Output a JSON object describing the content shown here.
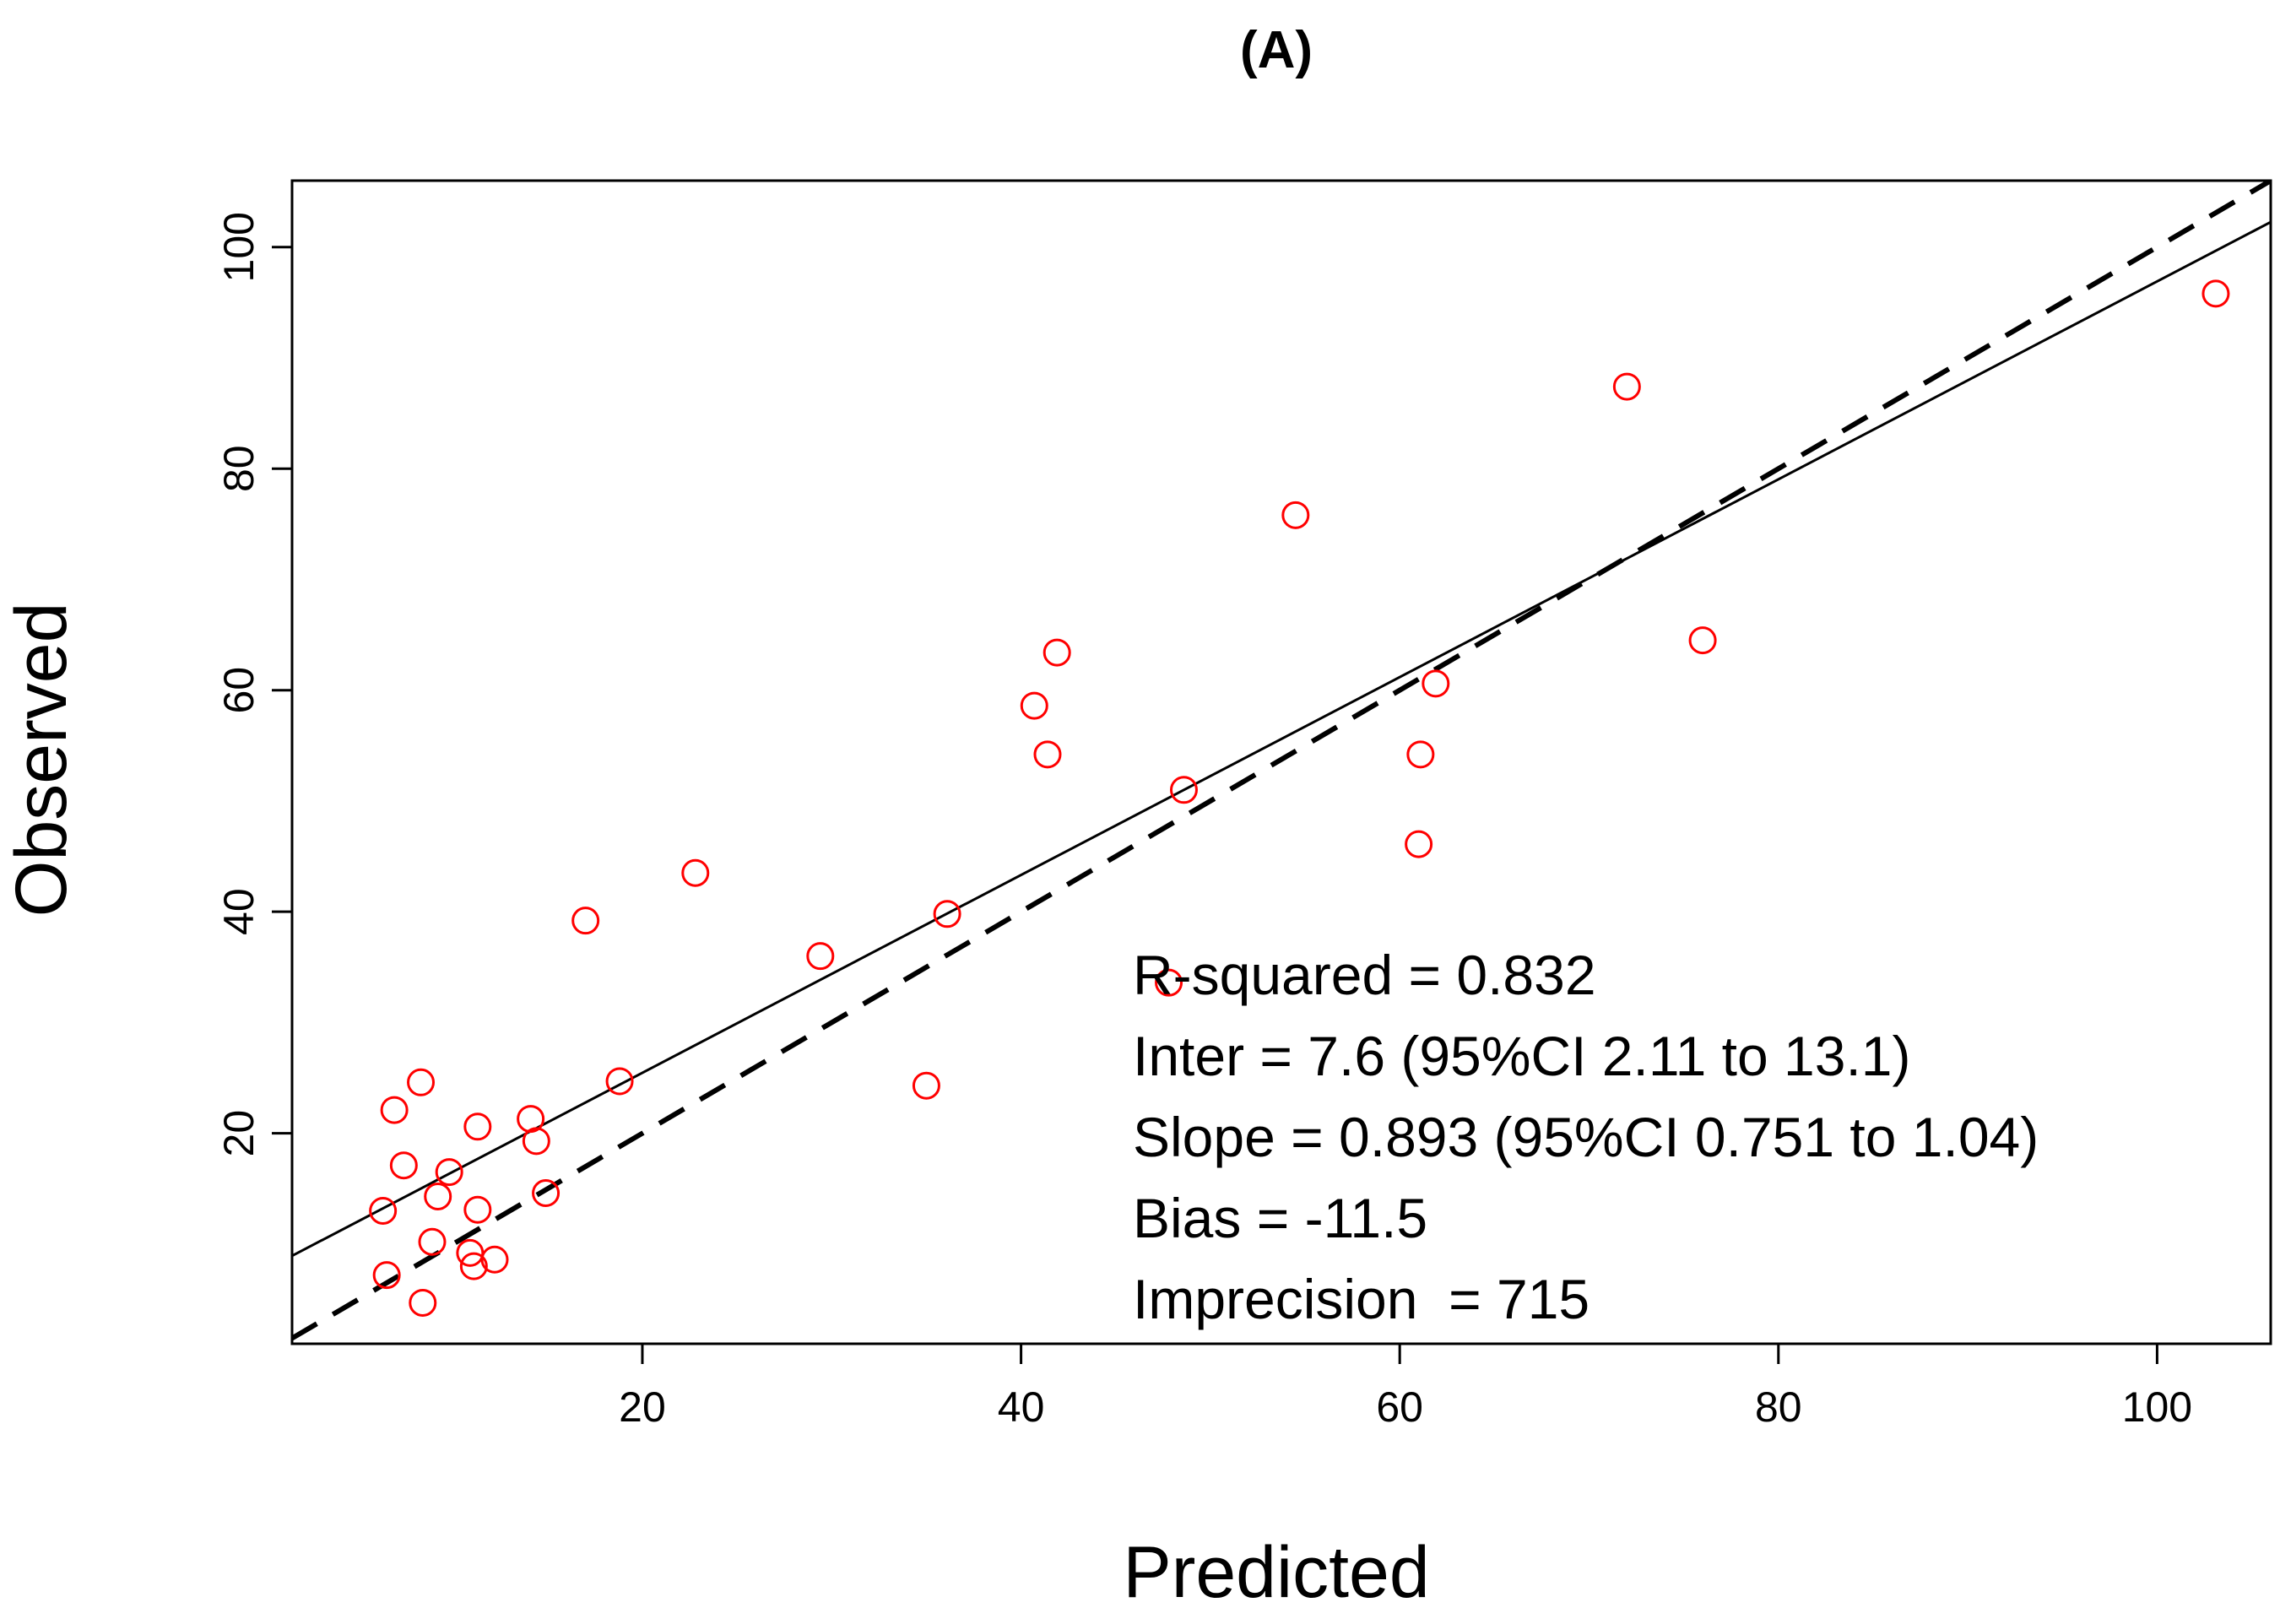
{
  "chart_data": {
    "type": "scatter",
    "title": "(A)",
    "xlabel": "Predicted",
    "ylabel": "Observed",
    "xlim": [
      1.5,
      106
    ],
    "ylim": [
      1,
      106
    ],
    "xticks": [
      20,
      40,
      60,
      80,
      100
    ],
    "yticks": [
      20,
      40,
      60,
      80,
      100
    ],
    "grid": false,
    "point_color": "#ff0000",
    "points": [
      {
        "x": 6.3,
        "y": 13.0
      },
      {
        "x": 6.5,
        "y": 7.2
      },
      {
        "x": 6.9,
        "y": 22.1
      },
      {
        "x": 7.4,
        "y": 17.1
      },
      {
        "x": 8.3,
        "y": 24.6
      },
      {
        "x": 8.4,
        "y": 4.7
      },
      {
        "x": 8.9,
        "y": 10.2
      },
      {
        "x": 9.2,
        "y": 14.3
      },
      {
        "x": 9.8,
        "y": 16.5
      },
      {
        "x": 10.9,
        "y": 9.2
      },
      {
        "x": 11.1,
        "y": 8.0
      },
      {
        "x": 11.3,
        "y": 20.6
      },
      {
        "x": 11.3,
        "y": 13.1
      },
      {
        "x": 12.2,
        "y": 8.6
      },
      {
        "x": 14.1,
        "y": 21.3
      },
      {
        "x": 14.4,
        "y": 19.3
      },
      {
        "x": 14.9,
        "y": 14.6
      },
      {
        "x": 17.0,
        "y": 39.2
      },
      {
        "x": 18.8,
        "y": 24.7
      },
      {
        "x": 22.8,
        "y": 43.5
      },
      {
        "x": 29.4,
        "y": 36.0
      },
      {
        "x": 35.0,
        "y": 24.3
      },
      {
        "x": 36.1,
        "y": 39.8
      },
      {
        "x": 40.7,
        "y": 58.6
      },
      {
        "x": 41.4,
        "y": 54.2
      },
      {
        "x": 41.9,
        "y": 63.4
      },
      {
        "x": 47.8,
        "y": 33.6
      },
      {
        "x": 48.6,
        "y": 51.0
      },
      {
        "x": 54.5,
        "y": 75.8
      },
      {
        "x": 61.0,
        "y": 46.1
      },
      {
        "x": 61.1,
        "y": 54.2
      },
      {
        "x": 61.9,
        "y": 60.6
      },
      {
        "x": 72.0,
        "y": 87.4
      },
      {
        "x": 76.0,
        "y": 64.5
      },
      {
        "x": 103.1,
        "y": 95.8
      }
    ],
    "lines": [
      {
        "name": "fit",
        "style": "solid",
        "intercept": 7.6,
        "slope": 0.893
      },
      {
        "name": "identity",
        "style": "dashed",
        "intercept": 0,
        "slope": 1
      }
    ],
    "annotations": [
      "R-squared = 0.832",
      "Inter = 7.6 (95%CI 2.11 to 13.1)",
      "Slope = 0.893 (95%CI 0.751 to 1.04)",
      "Bias = -11.5",
      "Imprecision  = 715"
    ]
  }
}
